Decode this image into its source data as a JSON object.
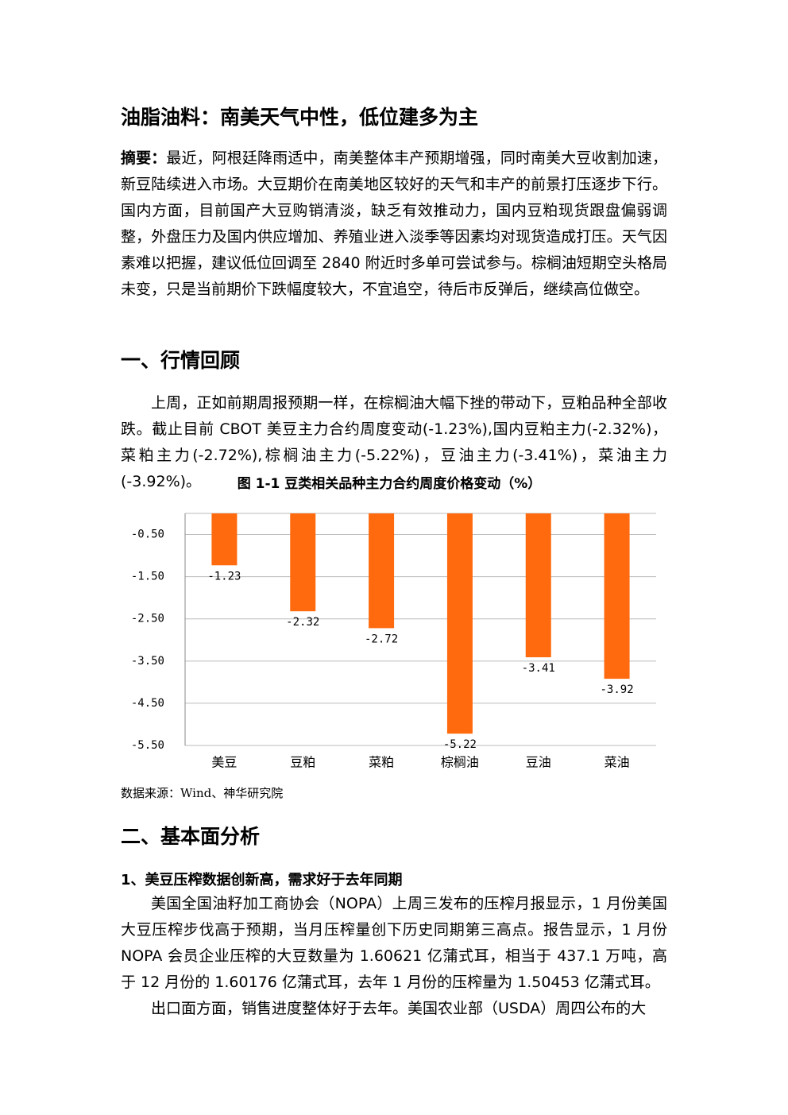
{
  "title": "油脂油料：南美天气中性，低位建多为主",
  "summary": {
    "label": "摘要：",
    "text": "最近，阿根廷降雨适中，南美整体丰产预期增强，同时南美大豆收割加速，新豆陆续进入市场。大豆期价在南美地区较好的天气和丰产的前景打压逐步下行。国内方面，目前国产大豆购销清淡，缺乏有效推动力，国内豆粕现货跟盘偏弱调整，外盘压力及国内供应增加、养殖业进入淡季等因素均对现货造成打压。天气因素难以把握，建议低位回调至 2840 附近时多单可尝试参与。棕榈油短期空头格局未变，只是当前期价下跌幅度较大，不宜追空，待后市反弹后，继续高位做空。"
  },
  "section1": {
    "heading": "一、行情回顾",
    "paragraph": "上周，正如前期周报预期一样，在棕榈油大幅下挫的带动下，豆粕品种全部收跌。截止目前 CBOT 美豆主力合约周度变动(-1.23%),国内豆粕主力(-2.32%)，菜粕主力(-2.72%),棕榈油主力(-5.22%)，豆油主力(-3.41%)，菜油主力(-3.92%)。"
  },
  "figure": {
    "caption": "图 1-1 豆类相关品种主力合约周度价格变动（%）",
    "source": "数据来源：Wind、神华研究院"
  },
  "chart_data": {
    "type": "bar",
    "categories": [
      "美豆",
      "豆粕",
      "菜粕",
      "棕榈油",
      "豆油",
      "菜油"
    ],
    "values": [
      -1.23,
      -2.32,
      -2.72,
      -5.22,
      -3.41,
      -3.92
    ],
    "color": "#ff6a0e",
    "ylim": [
      0,
      -5.5
    ],
    "yticks": [
      {
        "value": -0.5,
        "label": "-0.50"
      },
      {
        "value": -1.5,
        "label": "-1.50"
      },
      {
        "value": -2.5,
        "label": "-2.50"
      },
      {
        "value": -3.5,
        "label": "-3.50"
      },
      {
        "value": -4.5,
        "label": "-4.50"
      },
      {
        "value": -5.5,
        "label": "-5.50"
      }
    ],
    "grid": true
  },
  "section2": {
    "heading": "二、基本面分析",
    "subheading": "1、美豆压榨数据创新高，需求好于去年同期",
    "paragraphs": [
      "美国全国油籽加工商协会（NOPA）上周三发布的压榨月报显示，1 月份美国大豆压榨步伐高于预期，当月压榨量创下历史同期第三高点。报告显示，1 月份 NOPA 会员企业压榨的大豆数量为 1.60621 亿蒲式耳，相当于 437.1 万吨，高于 12 月份的 1.60176 亿蒲式耳，去年 1 月份的压榨量为 1.50453 亿蒲式耳。",
      "出口面方面，销售进度整体好于去年。美国农业部（USDA）周四公布的大"
    ]
  }
}
